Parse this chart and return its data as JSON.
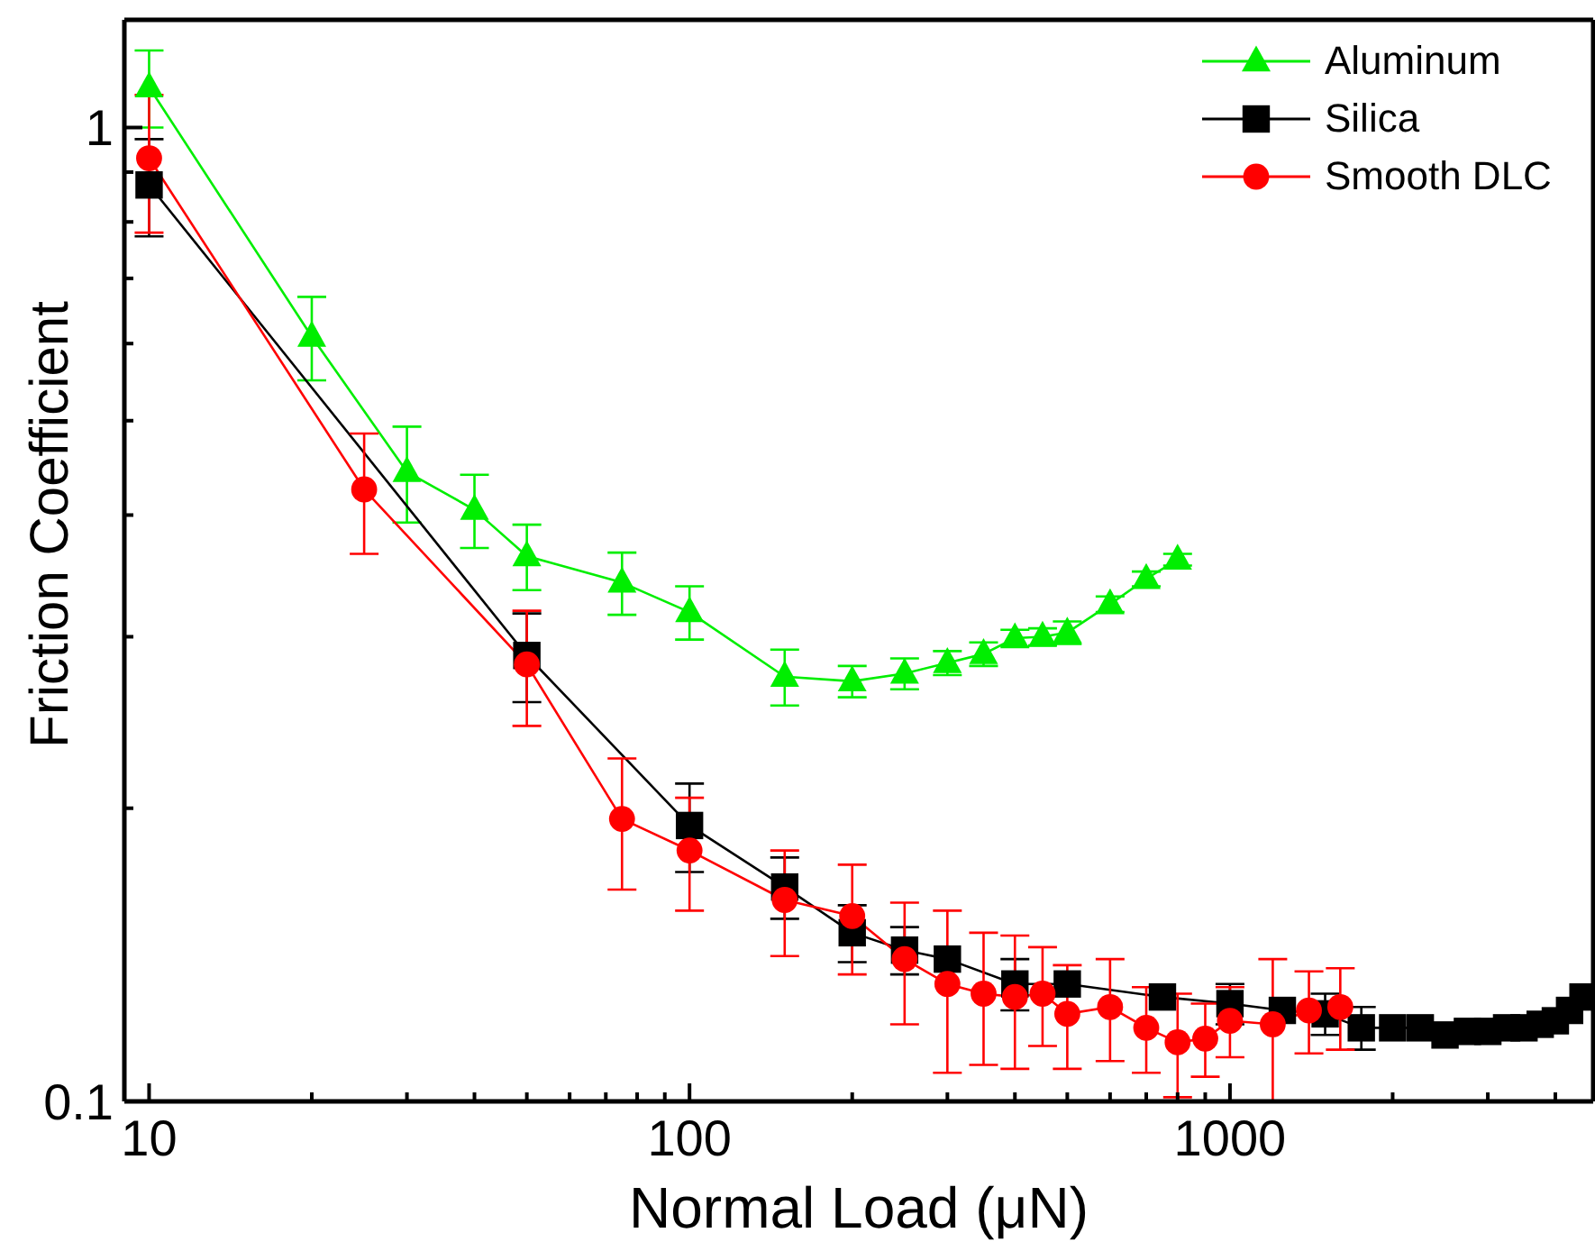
{
  "chart_data": {
    "type": "line",
    "xlabel": "Normal Load (μN)",
    "ylabel": "Friction Coefficient",
    "log": "xy",
    "xlim": [
      9,
      4700
    ],
    "ylim": [
      0.1,
      1.29
    ],
    "xticks": [
      10,
      {
        "value": 20,
        "label": null
      },
      {
        "value": 30,
        "label": null
      },
      {
        "value": 40,
        "label": null
      },
      {
        "value": 50,
        "label": null
      },
      {
        "value": 60,
        "label": null
      },
      {
        "value": 70,
        "label": null
      },
      {
        "value": 80,
        "label": null
      },
      {
        "value": 90,
        "label": null
      },
      100,
      {
        "value": 200,
        "label": null
      },
      {
        "value": 300,
        "label": null
      },
      {
        "value": 400,
        "label": null
      },
      {
        "value": 500,
        "label": null
      },
      {
        "value": 600,
        "label": null
      },
      {
        "value": 700,
        "label": null
      },
      {
        "value": 800,
        "label": null
      },
      {
        "value": 900,
        "label": null
      },
      1000,
      {
        "value": 2000,
        "label": null
      },
      {
        "value": 3000,
        "label": null
      },
      {
        "value": 4000,
        "label": null
      }
    ],
    "yticks": [
      0.1,
      {
        "value": 0.2,
        "label": null
      },
      {
        "value": 0.3,
        "label": null
      },
      {
        "value": 0.4,
        "label": null
      },
      {
        "value": 0.5,
        "label": null
      },
      {
        "value": 0.6,
        "label": null
      },
      {
        "value": 0.7,
        "label": null
      },
      {
        "value": 0.8,
        "label": null
      },
      {
        "value": 0.9,
        "label": null
      },
      1
    ],
    "legend": "top right",
    "series": [
      {
        "name": "Aluminum",
        "color": "#00ee00",
        "marker": "triangle",
        "x": [
          10,
          20,
          30,
          40,
          50,
          75,
          100,
          150,
          200,
          250,
          300,
          350,
          400,
          450,
          500,
          600,
          700,
          800
        ],
        "values": [
          1.1,
          0.61,
          0.443,
          0.405,
          0.363,
          0.341,
          0.318,
          0.273,
          0.27,
          0.275,
          0.282,
          0.288,
          0.299,
          0.3,
          0.303,
          0.324,
          0.344,
          0.36
        ],
        "errors": [
          0.1,
          0.06,
          0.05,
          0.035,
          0.028,
          0.025,
          0.02,
          0.018,
          0.01,
          0.01,
          0.008,
          0.008,
          0.006,
          0.006,
          0.008,
          0.006,
          0.006,
          0.005
        ]
      },
      {
        "name": "Silica",
        "color": "#000000",
        "marker": "square",
        "x": [
          10,
          50,
          100,
          150,
          200,
          250,
          300,
          400,
          500,
          750,
          1000,
          1250,
          1500,
          1750,
          2000,
          2250,
          2500,
          2750,
          3000,
          3250,
          3500,
          3750,
          4000,
          4250,
          4500
        ],
        "values": [
          0.873,
          0.287,
          0.192,
          0.166,
          0.149,
          0.143,
          0.14,
          0.132,
          0.132,
          0.128,
          0.126,
          0.124,
          0.123,
          0.119,
          0.119,
          0.119,
          0.117,
          0.118,
          0.118,
          0.119,
          0.119,
          0.12,
          0.121,
          0.124,
          0.128
        ],
        "errors": [
          0.1,
          0.03,
          0.02,
          0.012,
          0.01,
          0.008,
          null,
          0.008,
          null,
          null,
          0.006,
          null,
          0.006,
          0.006,
          null,
          null,
          null,
          null,
          null,
          null,
          null,
          null,
          null,
          null,
          null
        ]
      },
      {
        "name": "Smooth DLC",
        "color": "#ff0000",
        "marker": "circle",
        "x": [
          10,
          25,
          50,
          75,
          100,
          150,
          200,
          250,
          300,
          350,
          400,
          450,
          500,
          600,
          700,
          800,
          900,
          1000,
          1200,
          1400,
          1600
        ],
        "values": [
          0.93,
          0.425,
          0.281,
          0.195,
          0.181,
          0.161,
          0.155,
          0.14,
          0.132,
          0.129,
          0.128,
          0.129,
          0.123,
          0.125,
          0.119,
          0.115,
          0.116,
          0.121,
          0.12,
          0.124,
          0.125
        ],
        "errors": [
          0.15,
          0.06,
          0.038,
          0.03,
          0.024,
          0.02,
          0.02,
          0.02,
          0.025,
          0.02,
          0.02,
          0.015,
          0.015,
          0.015,
          0.012,
          0.014,
          0.01,
          0.01,
          0.02,
          0.012,
          0.012
        ]
      }
    ]
  }
}
